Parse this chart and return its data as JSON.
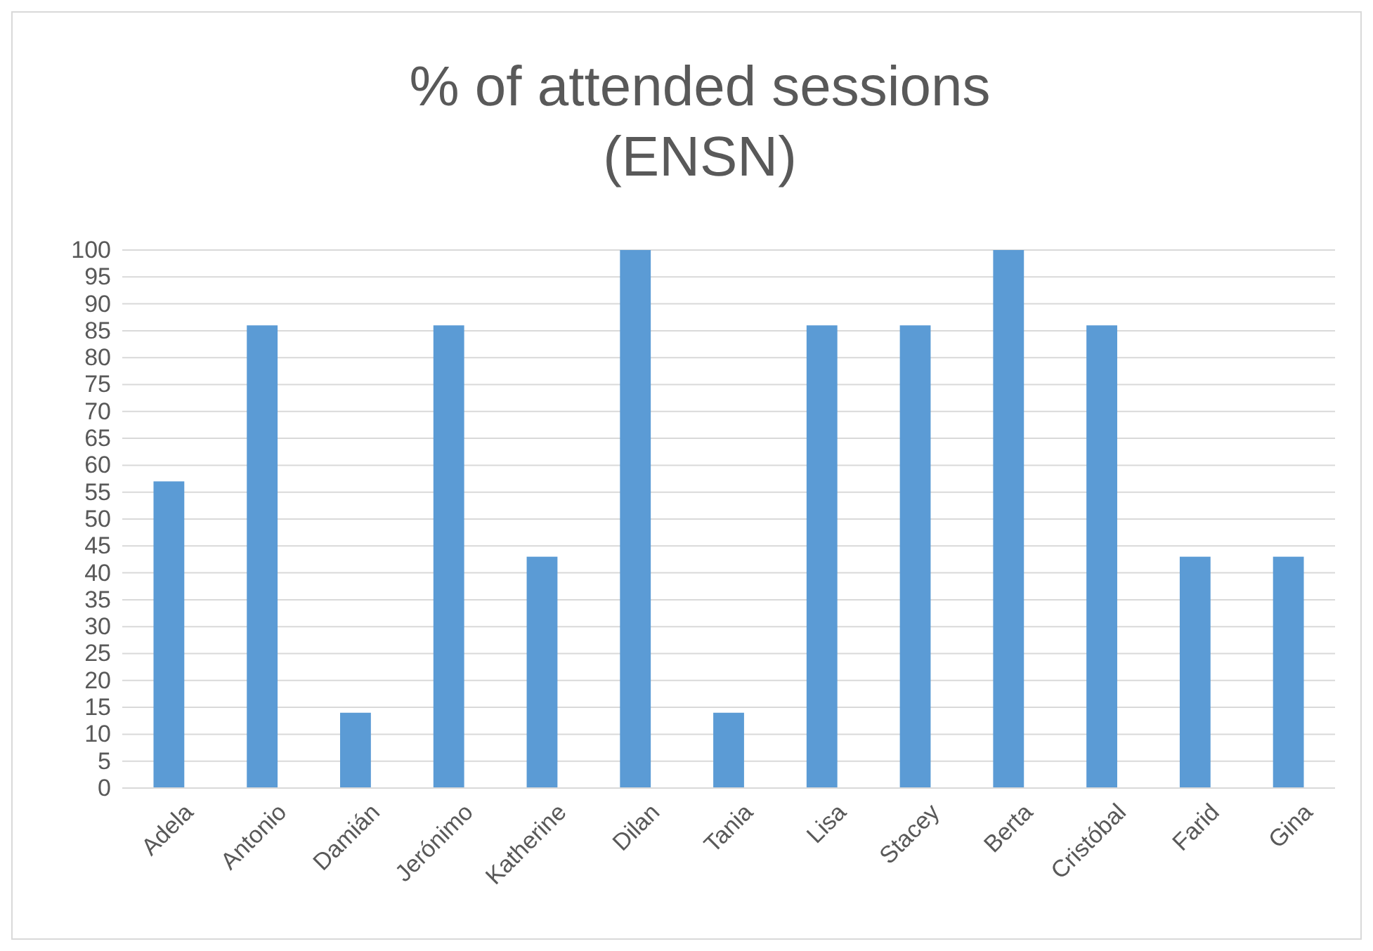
{
  "chart_data": {
    "type": "bar",
    "title": "% of attended sessions\n(ENSN)",
    "categories": [
      "Adela",
      "Antonio",
      "Damián",
      "Jerónimo",
      "Katherine",
      "Dilan",
      "Tania",
      "Lisa",
      "Stacey",
      "Berta",
      "Cristóbal",
      "Farid",
      "Gina"
    ],
    "values": [
      57,
      86,
      14,
      86,
      43,
      100,
      14,
      86,
      86,
      100,
      86,
      43,
      43
    ],
    "color": "#5b9bd5",
    "ylim": [
      0,
      100
    ],
    "yticks": [
      0,
      5,
      10,
      15,
      20,
      25,
      30,
      35,
      40,
      45,
      50,
      55,
      60,
      65,
      70,
      75,
      80,
      85,
      90,
      95,
      100
    ],
    "grid": "y"
  }
}
